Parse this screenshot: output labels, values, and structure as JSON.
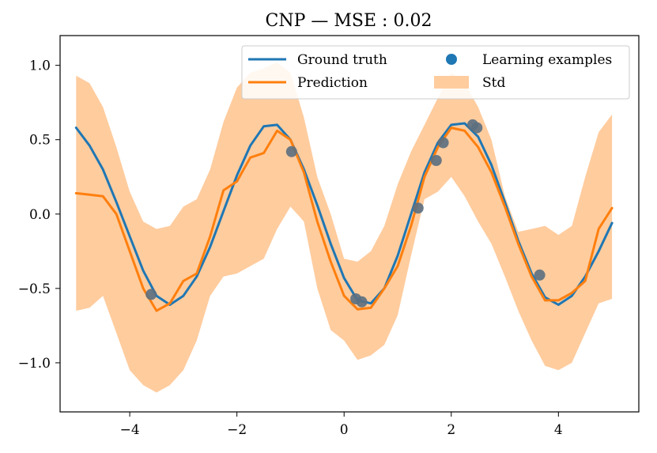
{
  "chart_data": {
    "type": "line",
    "title": "CNP — MSE : 0.02",
    "xlabel": "",
    "ylabel": "",
    "xlim": [
      -5.3,
      5.5
    ],
    "ylim": [
      -1.33,
      1.2
    ],
    "x_ticks": [
      -4,
      -2,
      0,
      2,
      4
    ],
    "x_tick_labels": [
      "−4",
      "−2",
      "0",
      "2",
      "4"
    ],
    "y_ticks": [
      -1.0,
      -0.5,
      0.0,
      0.5,
      1.0
    ],
    "y_tick_labels": [
      "−1.0",
      "−0.5",
      "0.0",
      "0.5",
      "1.0"
    ],
    "grid": false,
    "legend_position": "top-right",
    "colors": {
      "ground_truth": "#1f77b4",
      "prediction": "#ff7f0e",
      "std": "#ffcc9e",
      "axis": "#000000"
    },
    "legend": [
      {
        "label": "Ground truth",
        "kind": "line",
        "color": "#1f77b4"
      },
      {
        "label": "Learning examples",
        "kind": "marker",
        "color": "#1f77b4"
      },
      {
        "label": "Prediction",
        "kind": "line",
        "color": "#ff7f0e"
      },
      {
        "label": "Std",
        "kind": "patch",
        "color": "#ffcc9e"
      }
    ],
    "series": [
      {
        "name": "Ground truth",
        "type": "line",
        "x": [
          -5.0,
          -4.75,
          -4.5,
          -4.25,
          -4.0,
          -3.75,
          -3.5,
          -3.25,
          -3.0,
          -2.75,
          -2.5,
          -2.25,
          -2.0,
          -1.75,
          -1.5,
          -1.25,
          -1.0,
          -0.75,
          -0.5,
          -0.25,
          0.0,
          0.25,
          0.5,
          0.75,
          1.0,
          1.25,
          1.5,
          1.75,
          2.0,
          2.25,
          2.5,
          2.75,
          3.0,
          3.25,
          3.5,
          3.75,
          4.0,
          4.25,
          4.5,
          4.75,
          5.0
        ],
        "y": [
          0.58,
          0.46,
          0.3,
          0.08,
          -0.15,
          -0.38,
          -0.55,
          -0.61,
          -0.55,
          -0.42,
          -0.22,
          0.02,
          0.26,
          0.46,
          0.59,
          0.6,
          0.5,
          0.3,
          0.06,
          -0.2,
          -0.43,
          -0.58,
          -0.6,
          -0.5,
          -0.28,
          0.0,
          0.28,
          0.48,
          0.6,
          0.61,
          0.52,
          0.33,
          0.08,
          -0.18,
          -0.4,
          -0.56,
          -0.61,
          -0.55,
          -0.42,
          -0.25,
          -0.06
        ]
      },
      {
        "name": "Prediction",
        "type": "line",
        "x": [
          -5.0,
          -4.75,
          -4.5,
          -4.25,
          -4.0,
          -3.75,
          -3.5,
          -3.25,
          -3.0,
          -2.75,
          -2.5,
          -2.25,
          -2.0,
          -1.75,
          -1.5,
          -1.25,
          -1.0,
          -0.75,
          -0.5,
          -0.25,
          0.0,
          0.25,
          0.5,
          0.75,
          1.0,
          1.25,
          1.5,
          1.75,
          2.0,
          2.25,
          2.5,
          2.75,
          3.0,
          3.25,
          3.5,
          3.75,
          4.0,
          4.25,
          4.5,
          4.75,
          5.0
        ],
        "y": [
          0.14,
          0.13,
          0.12,
          0.0,
          -0.25,
          -0.5,
          -0.65,
          -0.6,
          -0.45,
          -0.4,
          -0.15,
          0.16,
          0.22,
          0.38,
          0.41,
          0.56,
          0.5,
          0.28,
          -0.05,
          -0.32,
          -0.55,
          -0.64,
          -0.63,
          -0.5,
          -0.35,
          -0.08,
          0.25,
          0.45,
          0.58,
          0.56,
          0.45,
          0.28,
          0.05,
          -0.2,
          -0.42,
          -0.58,
          -0.58,
          -0.53,
          -0.45,
          -0.1,
          0.04
        ]
      },
      {
        "name": "Std",
        "type": "area",
        "x": [
          -5.0,
          -4.75,
          -4.5,
          -4.25,
          -4.0,
          -3.75,
          -3.5,
          -3.25,
          -3.0,
          -2.75,
          -2.5,
          -2.25,
          -2.0,
          -1.75,
          -1.5,
          -1.25,
          -1.0,
          -0.75,
          -0.5,
          -0.25,
          0.0,
          0.25,
          0.5,
          0.75,
          1.0,
          1.25,
          1.5,
          1.75,
          2.0,
          2.25,
          2.5,
          2.75,
          3.0,
          3.25,
          3.5,
          3.75,
          4.0,
          4.25,
          4.5,
          4.75,
          5.0
        ],
        "upper": [
          0.93,
          0.88,
          0.72,
          0.45,
          0.15,
          -0.05,
          -0.1,
          -0.08,
          0.05,
          0.1,
          0.3,
          0.62,
          0.85,
          0.95,
          0.98,
          1.02,
          0.95,
          0.65,
          0.25,
          0.0,
          -0.3,
          -0.32,
          -0.25,
          -0.08,
          0.2,
          0.42,
          0.6,
          0.78,
          0.95,
          0.88,
          0.72,
          0.5,
          0.12,
          -0.12,
          -0.1,
          -0.08,
          -0.14,
          -0.08,
          0.25,
          0.55,
          0.67
        ],
        "lower": [
          -0.65,
          -0.63,
          -0.55,
          -0.8,
          -1.05,
          -1.15,
          -1.2,
          -1.15,
          -1.05,
          -0.85,
          -0.55,
          -0.42,
          -0.4,
          -0.35,
          -0.3,
          -0.1,
          0.05,
          -0.05,
          -0.5,
          -0.78,
          -0.85,
          -0.98,
          -0.95,
          -0.88,
          -0.68,
          -0.28,
          0.1,
          0.15,
          0.25,
          0.12,
          -0.05,
          -0.2,
          -0.42,
          -0.65,
          -0.85,
          -1.02,
          -1.05,
          -1.0,
          -0.8,
          -0.6,
          -0.57
        ]
      },
      {
        "name": "Learning examples",
        "type": "scatter",
        "x": [
          -3.6,
          -0.98,
          0.22,
          0.33,
          1.38,
          1.72,
          1.85,
          2.4,
          2.48,
          3.65
        ],
        "y": [
          -0.54,
          0.42,
          -0.57,
          -0.59,
          0.04,
          0.36,
          0.48,
          0.6,
          0.58,
          -0.41
        ]
      }
    ]
  }
}
